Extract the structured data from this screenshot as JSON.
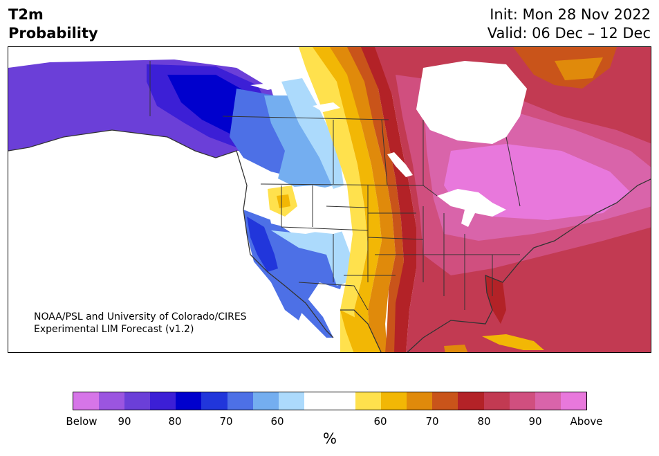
{
  "header": {
    "title_line1": "T2m",
    "title_line2": "Probability",
    "init": "Init: Mon 28 Nov 2022",
    "valid": "Valid: 06 Dec – 12 Dec"
  },
  "credit": {
    "line1": "NOAA/PSL and University of Colorado/CIRES",
    "line2": "Experimental LIM Forecast (v1.2)"
  },
  "colorbar": {
    "colors": [
      "#d675e8",
      "#9b55e0",
      "#6b3fd8",
      "#3c1fd6",
      "#0000cd",
      "#2136db",
      "#4d70e6",
      "#74aef0",
      "#acdafc",
      "#ffffff",
      "#ffffff",
      "#ffe14d",
      "#f2b705",
      "#e08a0b",
      "#c9541a",
      "#b32227",
      "#c23a52",
      "#d04f7f",
      "#d964aa",
      "#e878dc"
    ],
    "tick_labels": [
      "Below",
      "90",
      "80",
      "70",
      "60",
      "60",
      "70",
      "80",
      "90",
      "Above"
    ],
    "unit": "%"
  },
  "map_colors": {
    "below_far": "#6b3fd8",
    "below_mid": "#3c1fd6",
    "below_strong": "#0000cd",
    "below_70": "#2136db",
    "below_60": "#4d70e6",
    "below_light": "#74aef0",
    "below_pale": "#acdafc",
    "neutral": "#ffffff",
    "above_50": "#ffe14d",
    "above_60": "#f2b705",
    "above_65": "#e08a0b",
    "above_70": "#c9541a",
    "above_75": "#b32227",
    "above_80": "#c23a52",
    "above_85": "#d04f7f",
    "above_90": "#d964aa",
    "above_max": "#e878dc",
    "border": "#333333"
  }
}
